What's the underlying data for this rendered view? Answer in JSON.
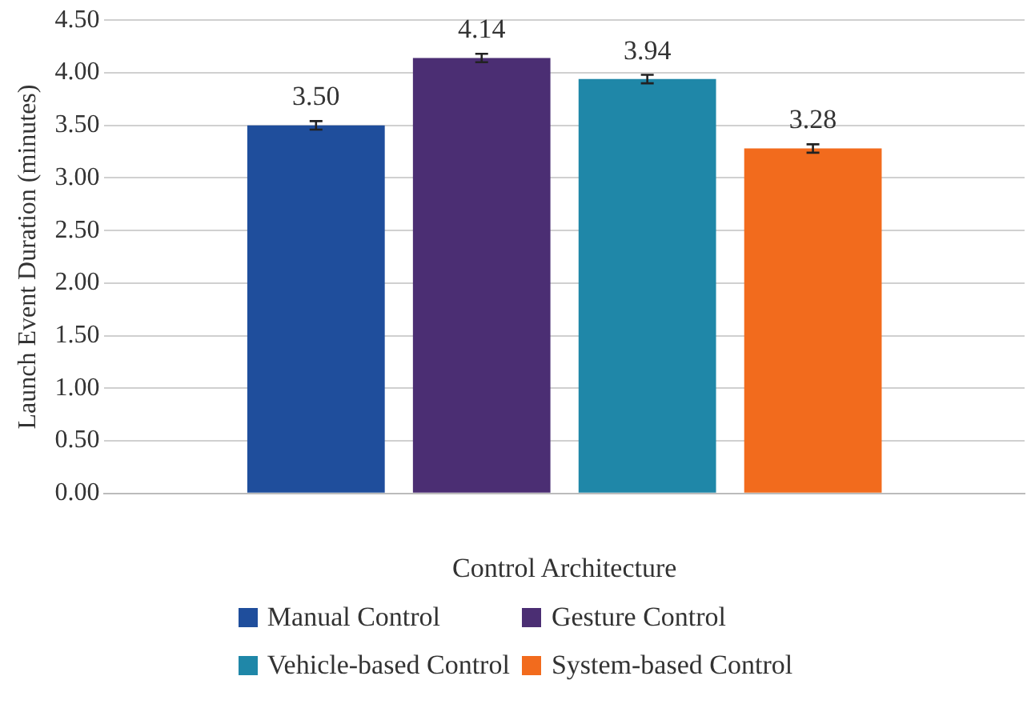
{
  "chart_data": {
    "type": "bar",
    "xlabel": "Control Architecture",
    "ylabel": "Launch Event Duration (minutes)",
    "categories": [
      null
    ],
    "series": [
      {
        "name": "Manual Control",
        "color": "#1f4e9c",
        "values": [
          3.5
        ],
        "errors": [
          0.04
        ],
        "value_labels": [
          "3.50"
        ]
      },
      {
        "name": "Gesture Control",
        "color": "#4b2e73",
        "values": [
          4.14
        ],
        "errors": [
          0.04
        ],
        "value_labels": [
          "4.14"
        ]
      },
      {
        "name": "Vehicle-based Control",
        "color": "#1f87a8",
        "values": [
          3.94
        ],
        "errors": [
          0.04
        ],
        "value_labels": [
          "3.94"
        ]
      },
      {
        "name": "System-based Control",
        "color": "#f26b1d",
        "values": [
          3.28
        ],
        "errors": [
          0.04
        ],
        "value_labels": [
          "3.28"
        ]
      }
    ],
    "ylim": [
      0,
      4.5
    ],
    "yticks": [
      {
        "value": 0,
        "label": "0.00"
      },
      {
        "value": 0.5,
        "label": "0.50"
      },
      {
        "value": 1,
        "label": "1.00"
      },
      {
        "value": 1.5,
        "label": "1.50"
      },
      {
        "value": 2,
        "label": "2.00"
      },
      {
        "value": 2.5,
        "label": "2.50"
      },
      {
        "value": 3,
        "label": "3.00"
      },
      {
        "value": 3.5,
        "label": "3.50"
      },
      {
        "value": 4,
        "label": "4.00"
      },
      {
        "value": 4.5,
        "label": "4.50"
      }
    ],
    "grid": "y",
    "legend": "bottom"
  }
}
